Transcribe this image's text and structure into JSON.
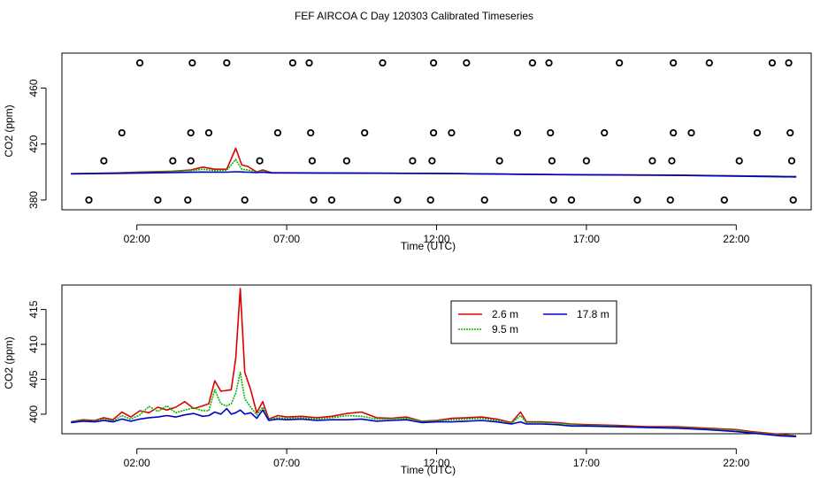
{
  "title": "FEF AIRCOA C  Day 120303  Calibrated Timeseries",
  "colors": {
    "s1": "#dd0000",
    "s2": "#00bb00",
    "s3": "#0000cc"
  },
  "chart_data": [
    {
      "type": "line",
      "xlabel": "Time (UTC)",
      "ylabel": "CO2 (ppm)",
      "x_ticks": [
        2,
        7,
        12,
        17,
        22
      ],
      "x_tick_labels": [
        "02:00",
        "07:00",
        "12:00",
        "17:00",
        "22:00"
      ],
      "y_ticks": [
        380,
        420,
        460
      ],
      "xlim": [
        -0.5,
        24.5
      ],
      "ylim": [
        373,
        485
      ],
      "circle_markers": [
        {
          "x": 0.4,
          "y": 380
        },
        {
          "x": 0.9,
          "y": 408
        },
        {
          "x": 1.5,
          "y": 428
        },
        {
          "x": 2.1,
          "y": 478
        },
        {
          "x": 2.7,
          "y": 380
        },
        {
          "x": 3.2,
          "y": 408
        },
        {
          "x": 3.7,
          "y": 380
        },
        {
          "x": 3.8,
          "y": 408
        },
        {
          "x": 3.8,
          "y": 428
        },
        {
          "x": 3.85,
          "y": 478
        },
        {
          "x": 4.4,
          "y": 428
        },
        {
          "x": 5.0,
          "y": 478
        },
        {
          "x": 5.6,
          "y": 380
        },
        {
          "x": 6.1,
          "y": 408
        },
        {
          "x": 6.7,
          "y": 428
        },
        {
          "x": 7.2,
          "y": 478
        },
        {
          "x": 7.75,
          "y": 478
        },
        {
          "x": 7.8,
          "y": 428
        },
        {
          "x": 7.85,
          "y": 408
        },
        {
          "x": 7.9,
          "y": 380
        },
        {
          "x": 8.5,
          "y": 380
        },
        {
          "x": 9.0,
          "y": 408
        },
        {
          "x": 9.6,
          "y": 428
        },
        {
          "x": 10.2,
          "y": 478
        },
        {
          "x": 10.7,
          "y": 380
        },
        {
          "x": 11.2,
          "y": 408
        },
        {
          "x": 11.8,
          "y": 380
        },
        {
          "x": 11.85,
          "y": 408
        },
        {
          "x": 11.9,
          "y": 428
        },
        {
          "x": 11.9,
          "y": 478
        },
        {
          "x": 12.5,
          "y": 428
        },
        {
          "x": 13.0,
          "y": 478
        },
        {
          "x": 13.6,
          "y": 380
        },
        {
          "x": 14.1,
          "y": 408
        },
        {
          "x": 14.7,
          "y": 428
        },
        {
          "x": 15.2,
          "y": 478
        },
        {
          "x": 15.75,
          "y": 478
        },
        {
          "x": 15.8,
          "y": 428
        },
        {
          "x": 15.85,
          "y": 408
        },
        {
          "x": 15.9,
          "y": 380
        },
        {
          "x": 16.5,
          "y": 380
        },
        {
          "x": 17.0,
          "y": 408
        },
        {
          "x": 17.6,
          "y": 428
        },
        {
          "x": 18.1,
          "y": 478
        },
        {
          "x": 18.7,
          "y": 380
        },
        {
          "x": 19.2,
          "y": 408
        },
        {
          "x": 19.8,
          "y": 380
        },
        {
          "x": 19.85,
          "y": 408
        },
        {
          "x": 19.9,
          "y": 428
        },
        {
          "x": 19.9,
          "y": 478
        },
        {
          "x": 20.5,
          "y": 428
        },
        {
          "x": 21.1,
          "y": 478
        },
        {
          "x": 21.6,
          "y": 380
        },
        {
          "x": 22.1,
          "y": 408
        },
        {
          "x": 22.7,
          "y": 428
        },
        {
          "x": 23.2,
          "y": 478
        },
        {
          "x": 23.75,
          "y": 478
        },
        {
          "x": 23.8,
          "y": 428
        },
        {
          "x": 23.85,
          "y": 408
        },
        {
          "x": 23.9,
          "y": 380
        }
      ],
      "series": [
        {
          "color_key": "s1",
          "x": [
            -0.2,
            1.2,
            2.2,
            3.2,
            3.8,
            4.2,
            4.6,
            5.0,
            5.3,
            5.5,
            5.7,
            6.0,
            6.2,
            6.5,
            12.0,
            16.0,
            20.0,
            24.0
          ],
          "values": [
            398.8,
            399.3,
            400.0,
            400.6,
            401.5,
            403.5,
            402.0,
            402.0,
            417.0,
            405.0,
            404.0,
            400.0,
            401.5,
            399.5,
            399.0,
            398.2,
            397.8,
            396.8
          ]
        },
        {
          "color_key": "s2",
          "x": [
            -0.2,
            1.2,
            2.2,
            3.2,
            3.8,
            4.2,
            4.6,
            5.0,
            5.3,
            5.5,
            5.7,
            6.0,
            6.2,
            6.5,
            12.0,
            16.0,
            20.0,
            24.0
          ],
          "values": [
            398.8,
            399.2,
            399.8,
            400.4,
            401.0,
            402.0,
            401.0,
            401.2,
            409.0,
            402.0,
            401.5,
            399.8,
            400.8,
            399.4,
            399.0,
            398.1,
            397.7,
            396.8
          ]
        },
        {
          "color_key": "s3",
          "x": [
            -0.2,
            1.2,
            2.2,
            3.2,
            3.8,
            4.2,
            4.6,
            5.0,
            5.3,
            5.5,
            5.7,
            6.0,
            6.2,
            6.5,
            12.0,
            16.0,
            20.0,
            24.0
          ],
          "values": [
            398.7,
            399.0,
            399.3,
            399.6,
            399.8,
            400.0,
            399.9,
            399.9,
            400.2,
            400.0,
            399.9,
            399.6,
            399.8,
            399.4,
            399.0,
            398.1,
            397.6,
            396.5
          ]
        }
      ]
    },
    {
      "type": "line",
      "xlabel": "Time (UTC)",
      "ylabel": "CO2 (ppm)",
      "x_ticks": [
        2,
        7,
        12,
        17,
        22
      ],
      "x_tick_labels": [
        "02:00",
        "07:00",
        "12:00",
        "17:00",
        "22:00"
      ],
      "y_ticks": [
        400,
        405,
        410,
        415
      ],
      "xlim": [
        -0.5,
        24.5
      ],
      "ylim": [
        397.2,
        418.5
      ],
      "legend_position": "top-right",
      "series": [
        {
          "name": "2.6 m",
          "color_key": "s1",
          "x": [
            -0.2,
            0.2,
            0.6,
            0.9,
            1.2,
            1.5,
            1.8,
            2.1,
            2.4,
            2.7,
            3.0,
            3.3,
            3.6,
            3.9,
            4.2,
            4.4,
            4.6,
            4.8,
            5.0,
            5.15,
            5.3,
            5.45,
            5.6,
            5.8,
            6.0,
            6.2,
            6.4,
            6.7,
            7.0,
            7.5,
            8.0,
            8.5,
            9.0,
            9.5,
            10.0,
            10.5,
            11.0,
            11.5,
            12.0,
            12.5,
            13.0,
            13.5,
            14.0,
            14.5,
            14.8,
            15.0,
            15.5,
            16.0,
            16.5,
            17.0,
            18.0,
            19.0,
            20.0,
            21.0,
            22.0,
            22.5,
            23.0,
            23.5,
            24.0
          ],
          "values": [
            398.9,
            399.2,
            399.1,
            399.5,
            399.2,
            400.3,
            399.6,
            400.5,
            400.2,
            401.0,
            400.6,
            401.0,
            401.8,
            400.8,
            401.2,
            401.5,
            404.8,
            403.3,
            403.4,
            403.5,
            408.0,
            418.0,
            406.0,
            403.5,
            400.2,
            401.8,
            399.3,
            399.8,
            399.6,
            399.7,
            399.5,
            399.7,
            400.1,
            400.3,
            399.5,
            399.4,
            399.6,
            399.0,
            399.1,
            399.4,
            399.5,
            399.6,
            399.3,
            398.8,
            400.3,
            398.9,
            398.9,
            398.8,
            398.6,
            398.5,
            398.4,
            398.2,
            398.2,
            398.0,
            397.8,
            397.5,
            397.3,
            397.1,
            396.9
          ]
        },
        {
          "name": "9.5 m",
          "color_key": "s2",
          "x": [
            -0.2,
            0.2,
            0.6,
            0.9,
            1.2,
            1.5,
            1.8,
            2.1,
            2.4,
            2.7,
            3.0,
            3.3,
            3.6,
            3.9,
            4.2,
            4.4,
            4.6,
            4.8,
            5.0,
            5.15,
            5.3,
            5.45,
            5.6,
            5.8,
            6.0,
            6.2,
            6.4,
            6.7,
            7.0,
            7.5,
            8.0,
            8.5,
            9.0,
            9.5,
            10.0,
            10.5,
            11.0,
            11.5,
            12.0,
            12.5,
            13.0,
            13.5,
            14.0,
            14.5,
            14.8,
            15.0,
            15.5,
            16.0,
            16.5,
            17.0,
            18.0,
            19.0,
            20.0,
            21.0,
            22.0,
            22.5,
            23.0,
            23.5,
            24.0
          ],
          "values": [
            398.9,
            399.1,
            399.0,
            399.3,
            399.0,
            399.8,
            399.3,
            399.9,
            401.1,
            400.4,
            401.2,
            400.2,
            400.6,
            400.9,
            400.5,
            400.5,
            403.5,
            401.5,
            401.2,
            401.5,
            403.0,
            406.0,
            402.2,
            401.0,
            399.9,
            401.0,
            399.2,
            399.5,
            399.4,
            399.5,
            399.3,
            399.5,
            399.8,
            399.7,
            399.3,
            399.3,
            399.4,
            399.0,
            399.0,
            399.2,
            399.3,
            399.4,
            399.1,
            398.7,
            399.8,
            398.8,
            398.8,
            398.7,
            398.5,
            398.4,
            398.3,
            398.1,
            398.1,
            397.9,
            397.7,
            397.4,
            397.2,
            397.0,
            396.9
          ]
        },
        {
          "name": "17.8 m",
          "color_key": "s3",
          "x": [
            -0.2,
            0.2,
            0.6,
            0.9,
            1.2,
            1.5,
            1.8,
            2.1,
            2.4,
            2.7,
            3.0,
            3.3,
            3.6,
            3.9,
            4.2,
            4.4,
            4.6,
            4.8,
            5.0,
            5.15,
            5.3,
            5.45,
            5.6,
            5.8,
            6.0,
            6.2,
            6.4,
            6.7,
            7.0,
            7.5,
            8.0,
            8.5,
            9.0,
            9.5,
            10.0,
            10.5,
            11.0,
            11.5,
            12.0,
            12.5,
            13.0,
            13.5,
            14.0,
            14.5,
            14.8,
            15.0,
            15.5,
            16.0,
            16.5,
            17.0,
            18.0,
            19.0,
            20.0,
            21.0,
            22.0,
            22.5,
            23.0,
            23.5,
            24.0
          ],
          "values": [
            398.8,
            399.0,
            398.9,
            399.1,
            398.9,
            399.3,
            399.0,
            399.3,
            399.5,
            399.6,
            399.8,
            399.6,
            399.9,
            400.1,
            399.7,
            399.8,
            400.3,
            400.0,
            400.8,
            400.0,
            400.2,
            400.6,
            400.0,
            400.2,
            399.4,
            400.6,
            399.1,
            399.3,
            399.2,
            399.3,
            399.1,
            399.2,
            399.2,
            399.3,
            399.0,
            399.1,
            399.2,
            398.8,
            398.9,
            398.9,
            399.0,
            399.1,
            398.9,
            398.6,
            398.9,
            398.6,
            398.6,
            398.5,
            398.3,
            398.3,
            398.2,
            398.1,
            398.0,
            397.8,
            397.5,
            397.3,
            397.1,
            396.9,
            396.8
          ]
        }
      ]
    }
  ]
}
